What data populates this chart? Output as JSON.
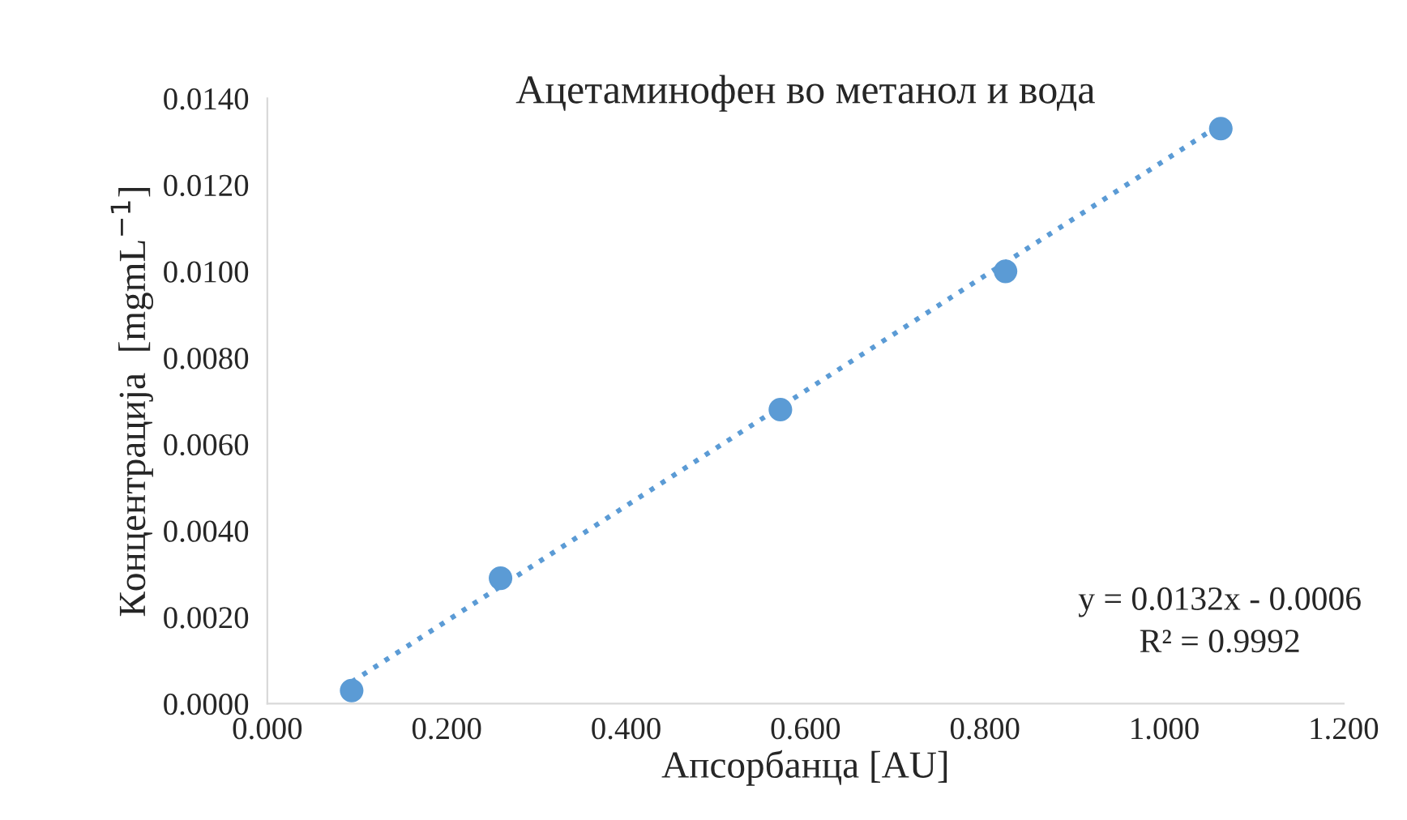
{
  "chart_data": {
    "type": "scatter",
    "title": "Ацетаминофен во метанол и вода",
    "xlabel": "Апсорбанца [AU]",
    "ylabel": "Концентрација  [mgmL$^{−1}$]",
    "x": [
      0.094,
      0.26,
      0.572,
      0.823,
      1.063
    ],
    "series": [
      {
        "color": "#5b9bd5",
        "values": [
          0.0003,
          0.0029,
          0.0068,
          0.01,
          0.0133
        ],
        "marker": "circle"
      },
      {
        "type": "line",
        "color": "#5b9bd5",
        "x": [
          0.094,
          1.063
        ],
        "values": [
          0.0005,
          0.0134
        ],
        "line_style": "dotted",
        "marker": "none"
      }
    ],
    "xlim": [
      0,
      1.2
    ],
    "xticks": [
      {
        "value": 0,
        "label": "0.000"
      },
      {
        "value": 0.2,
        "label": "0.200"
      },
      {
        "value": 0.4,
        "label": "0.400"
      },
      {
        "value": 0.6,
        "label": "0.600"
      },
      {
        "value": 0.8,
        "label": "0.800"
      },
      {
        "value": 1.0,
        "label": "1.000"
      },
      {
        "value": 1.2,
        "label": "1.200"
      }
    ],
    "ylim": [
      0,
      0.014
    ],
    "yticks": [
      {
        "value": 0,
        "label": "0.0000"
      },
      {
        "value": 0.002,
        "label": "0.0020"
      },
      {
        "value": 0.004,
        "label": "0.0040"
      },
      {
        "value": 0.006,
        "label": "0.0060"
      },
      {
        "value": 0.008,
        "label": "0.0080"
      },
      {
        "value": 0.01,
        "label": "0.0100"
      },
      {
        "value": 0.012,
        "label": "0.0120"
      },
      {
        "value": 0.014,
        "label": "0.0140"
      }
    ],
    "grid": false,
    "legend": false,
    "annotations": [
      "y = 0.0132x - 0.0006",
      "R² = 0.9992"
    ]
  }
}
